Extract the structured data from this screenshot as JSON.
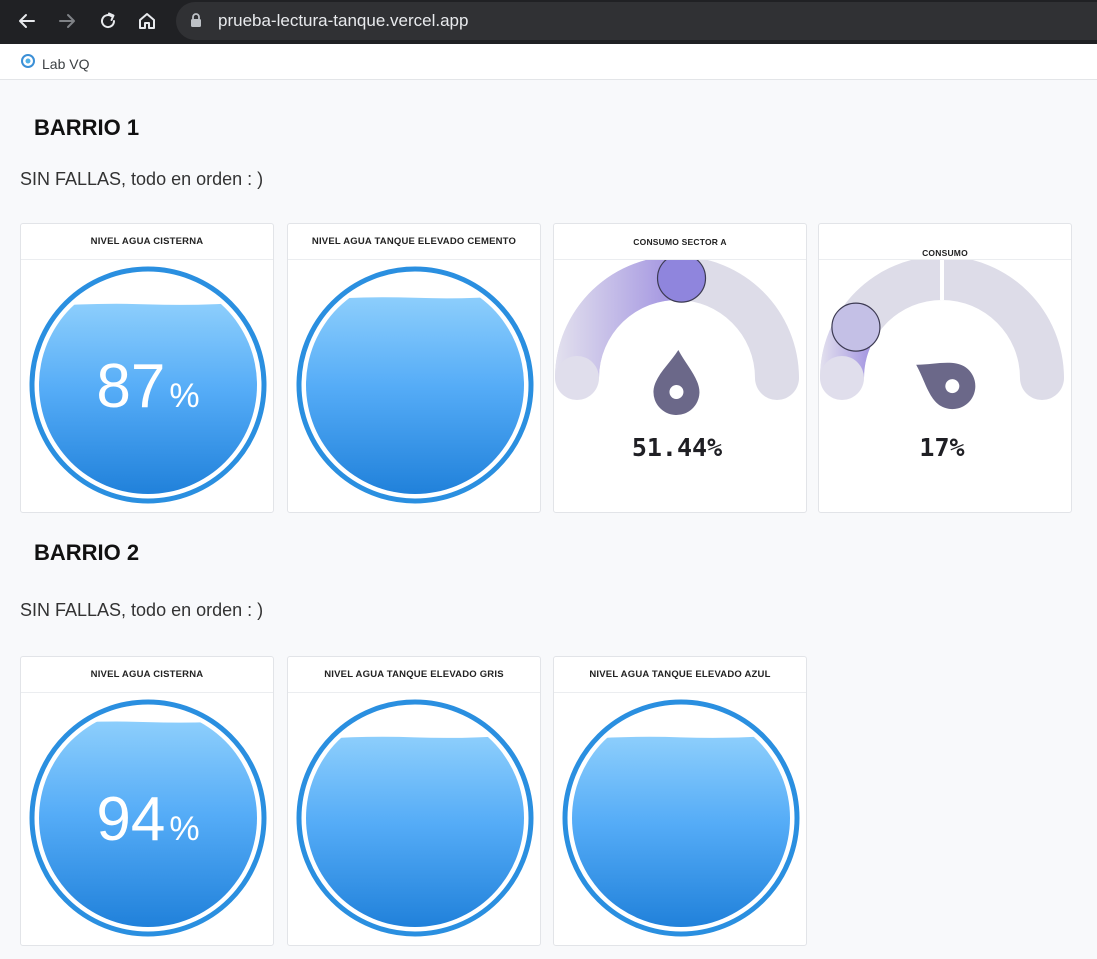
{
  "browser": {
    "url": "prueba-lectura-tanque.vercel.app",
    "back_icon": "arrow-left-icon",
    "forward_icon": "arrow-right-icon",
    "reload_icon": "reload-icon",
    "home_icon": "home-icon"
  },
  "bookmarks": [
    {
      "label": "Lab VQ",
      "icon": "lab-icon"
    }
  ],
  "colors": {
    "water_top": "#8ecffc",
    "water_bottom": "#1e7fd9",
    "ring": "#2a8fe0",
    "gauge_track": "#dddce8",
    "gauge_fill": "#9e8fe0",
    "needle": "#6b6889"
  },
  "sections": [
    {
      "title": "BARRIO 1",
      "status": "SIN FALLAS, todo en orden : )",
      "cards": [
        {
          "type": "tank",
          "title": "NIVEL AGUA CISTERNA",
          "level": 87,
          "show_value": true,
          "value": "87",
          "unit": "%"
        },
        {
          "type": "tank",
          "title": "NIVEL AGUA TANQUE ELEVADO CEMENTO",
          "level": 90,
          "show_value": false
        },
        {
          "type": "gauge",
          "title": "CONSUMO SECTOR A",
          "value_num": 51.44,
          "value": "51.44",
          "unit": "%"
        },
        {
          "type": "gauge",
          "title": "CONSUMO",
          "value_num": 17,
          "value": "17",
          "unit": "%",
          "split": true
        }
      ]
    },
    {
      "title": "BARRIO 2",
      "status": "SIN FALLAS, todo en orden : )",
      "cards": [
        {
          "type": "tank",
          "title": "NIVEL AGUA CISTERNA",
          "level": 94,
          "show_value": true,
          "value": "94",
          "unit": "%"
        },
        {
          "type": "tank",
          "title": "NIVEL AGUA TANQUE ELEVADO GRIS",
          "level": 87,
          "show_value": false
        },
        {
          "type": "tank",
          "title": "NIVEL AGUA TANQUE ELEVADO AZUL",
          "level": 87,
          "show_value": false
        }
      ]
    }
  ]
}
